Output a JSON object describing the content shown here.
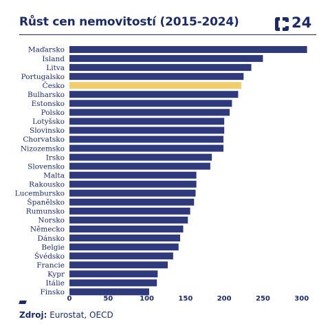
{
  "header": {
    "title": "Růst cen nemovitostí (2015-2024)",
    "logo_text": "24"
  },
  "colors": {
    "bar": "#2f3a7d",
    "highlight": "#f2cd6b",
    "text": "#1c2b67"
  },
  "chart_data": {
    "type": "bar",
    "orientation": "horizontal",
    "categories": [
      "Maďarsko",
      "Island",
      "Litva",
      "Portugalsko",
      "Česko",
      "Bulharsko",
      "Estonsko",
      "Polsko",
      "Lotyšsko",
      "Slovinsko",
      "Chorvatsko",
      "Nizozemsko",
      "Irsko",
      "Slovensko",
      "Malta",
      "Rakousko",
      "Lucembursko",
      "Španělsko",
      "Rumunsko",
      "Norsko",
      "Německo",
      "Dánsko",
      "Belgie",
      "Švédsko",
      "Francie",
      "Kypr",
      "Itálie",
      "Finsko"
    ],
    "values": [
      307,
      250,
      235,
      225,
      222,
      218,
      210,
      207,
      200,
      200,
      199,
      199,
      184,
      182,
      164,
      164,
      163,
      161,
      156,
      153,
      147,
      143,
      141,
      134,
      127,
      114,
      113,
      103
    ],
    "highlight": "Česko",
    "xlim": [
      0,
      310
    ],
    "xticks": [
      "0",
      "50",
      "100",
      "150",
      "200",
      "250",
      "300"
    ],
    "xtick_values": [
      0,
      50,
      100,
      150,
      200,
      250,
      300
    ],
    "grid": false
  },
  "footer": {
    "source_label": "Zdroj:",
    "source_text": " Eurostat, OECD"
  }
}
